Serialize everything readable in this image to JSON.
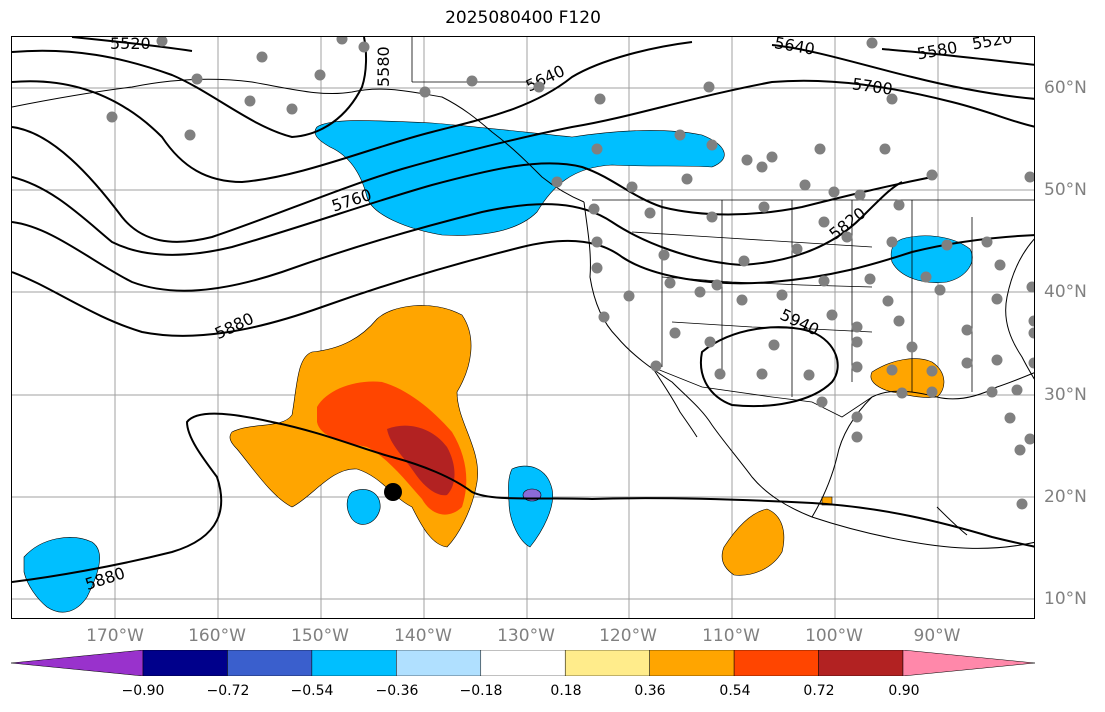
{
  "title": "2025080400 F120",
  "lon_labels": [
    "170°W",
    "160°W",
    "150°W",
    "140°W",
    "130°W",
    "120°W",
    "110°W",
    "100°W",
    "90°W"
  ],
  "lat_labels": [
    "60°N",
    "50°N",
    "40°N",
    "30°N",
    "20°N",
    "10°N"
  ],
  "contour_labels": [
    "5520",
    "5580",
    "5640",
    "5640",
    "5700",
    "5580",
    "5520",
    "5760",
    "5820",
    "5880",
    "5940",
    "5880"
  ],
  "colorbar": {
    "labels": [
      "−0.90",
      "−0.72",
      "−0.54",
      "−0.36",
      "−0.18",
      "0.18",
      "0.36",
      "0.54",
      "0.72",
      "0.90"
    ],
    "colors": [
      "#9932cc",
      "#00008b",
      "#3a5fcd",
      "#00bfff",
      "#b0e0ff",
      "#ffffff",
      "#ffec8b",
      "#ffa500",
      "#ff4500",
      "#b22222",
      "#ff88aa"
    ]
  },
  "map_colors": {
    "negative_fill": "#00bfff",
    "negative_core": "#8b6cd8",
    "positive_fill": "#ffa500",
    "positive_mid": "#ff4500",
    "positive_core": "#b22222",
    "station_marker": "#808080",
    "highlight_marker": "#000000",
    "grid": "#a0a0a0"
  }
}
